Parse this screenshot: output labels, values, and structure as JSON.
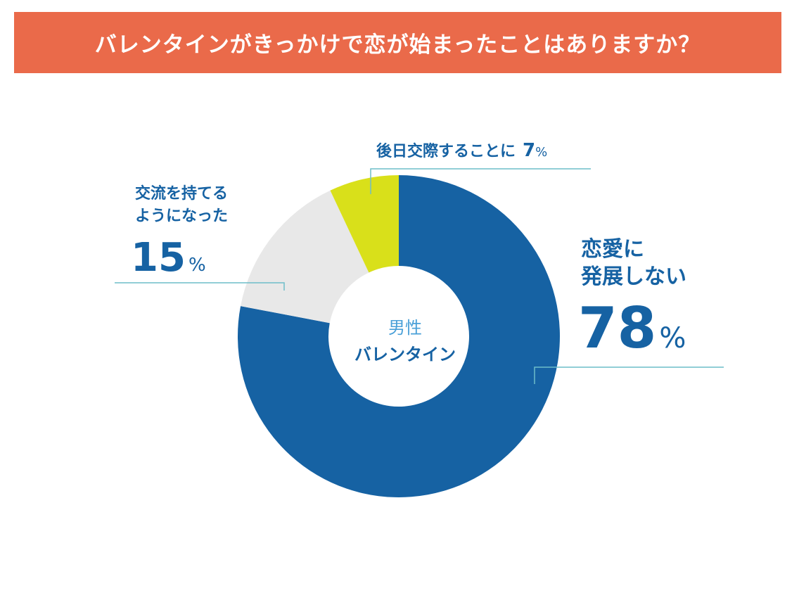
{
  "title": "バレンタインがきっかけで恋が始まったことはありますか？",
  "colors": {
    "banner": "#ea6a4a",
    "no_romance": "#1662a3",
    "friends": "#e8e8e8",
    "dating": "#d9e01a",
    "label_text": "#1662a3",
    "center_top_text": "#4aa0d8",
    "leader_line": "#6dbdc9"
  },
  "center_label": {
    "line1": "男性",
    "line2": "バレンタイン"
  },
  "chart_data": {
    "type": "pie",
    "donut": true,
    "title": "バレンタインがきっかけで恋が始まったことはありますか？",
    "start_angle": "12 o'clock",
    "direction": "clockwise",
    "unit": "%",
    "slices": [
      {
        "label": "恋愛に発展しない",
        "value": 78,
        "color": "#1662a3"
      },
      {
        "label": "交流を持てるようになった",
        "value": 15,
        "color": "#e8e8e8"
      },
      {
        "label": "後日交際することに",
        "value": 7,
        "color": "#d9e01a"
      }
    ]
  },
  "labels": {
    "no_romance": {
      "line1": "恋愛に",
      "line2": "発展しない",
      "value": "78",
      "unit": "%"
    },
    "friends": {
      "line1": "交流を持てる",
      "line2": "ようになった",
      "value": "15",
      "unit": "%"
    },
    "dating": {
      "text": "後日交際することに",
      "value": "7",
      "unit": "%"
    }
  }
}
